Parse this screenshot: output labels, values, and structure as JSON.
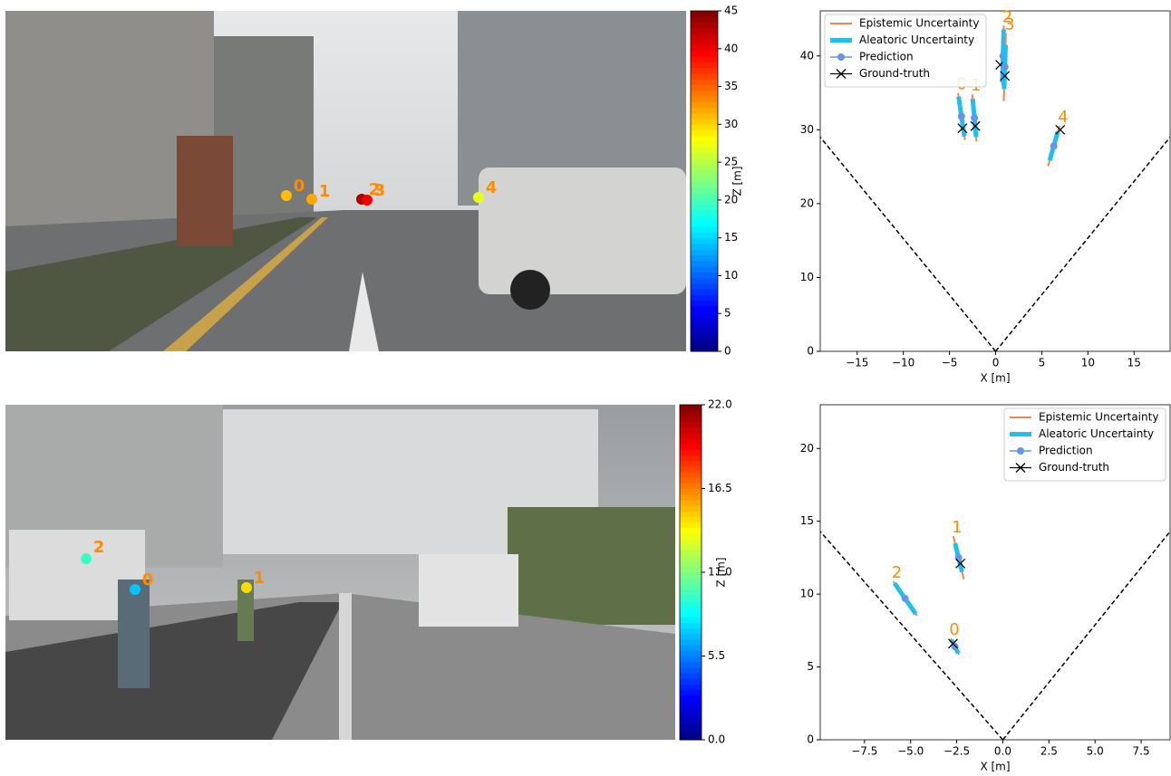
{
  "chart_data": [
    {
      "type": "image_points",
      "labels": [
        "0",
        "1",
        "2",
        "3",
        "4"
      ],
      "values": [
        31,
        32,
        43,
        40,
        27
      ],
      "label_color": "#ff8c00",
      "colorbar_label": "Z [m]",
      "zlim": [
        0,
        45
      ],
      "zticks": [
        0,
        5,
        10,
        15,
        20,
        25,
        30,
        35,
        40,
        45
      ]
    },
    {
      "type": "bev",
      "xlabel": "X [m]",
      "xlim": [
        -19,
        18.9
      ],
      "ylim": [
        0,
        46.1
      ],
      "xticks": [
        {
          "value": -15,
          "label": "−15"
        },
        {
          "value": -10,
          "label": "−10"
        },
        {
          "value": -5,
          "label": "−5"
        },
        0,
        5,
        10,
        15
      ],
      "yticks": [
        0,
        10,
        20,
        30,
        40
      ],
      "fov": [
        [
          -19,
          29
        ],
        [
          18.9,
          29
        ]
      ],
      "legend_loc": "upper left",
      "legend": [
        {
          "name": "Epistemic Uncertainty",
          "color": "#f4834f"
        },
        {
          "name": "Aleatoric Uncertainty",
          "color": "#1fbfef"
        },
        {
          "name": "Prediction",
          "color": "#6495ed"
        },
        {
          "name": "Ground-truth",
          "color": "#000000"
        }
      ],
      "label_color": "#ff8c00",
      "labels": [
        "0",
        "1",
        "2",
        "3",
        "4"
      ],
      "pred_x": [
        -3.7,
        -2.3,
        0.8,
        1.0,
        6.3
      ],
      "pred_z": [
        31.8,
        31.6,
        40.0,
        38.5,
        27.8
      ],
      "gt_x": [
        -3.6,
        -2.2,
        0.5,
        1.0,
        7.0
      ],
      "gt_z": [
        30.2,
        30.5,
        38.8,
        37.3,
        30.0
      ],
      "aleatoric": [
        2.7,
        2.6,
        3.6,
        3.0,
        2.0
      ],
      "epistemic": [
        3.2,
        3.2,
        4.1,
        4.6,
        2.8
      ]
    },
    {
      "type": "image_points",
      "labels": [
        "0",
        "1",
        "2"
      ],
      "values": [
        7,
        14.5,
        9.5
      ],
      "label_color": "#ff8c00",
      "colorbar_label": "Z [m]",
      "zlim": [
        0,
        22
      ],
      "zticks": [
        {
          "value": 0,
          "label": "0.0"
        },
        5.5,
        {
          "value": 11,
          "label": "11.0"
        },
        16.5,
        {
          "value": 22,
          "label": "22.0"
        }
      ]
    },
    {
      "type": "bev",
      "xlabel": "X [m]",
      "xlim": [
        -9.9,
        9.07
      ],
      "ylim": [
        0,
        23
      ],
      "xticks": [
        {
          "value": -7.5,
          "label": "−7.5"
        },
        {
          "value": -5,
          "label": "−5.0"
        },
        {
          "value": -2.5,
          "label": "−2.5"
        },
        {
          "value": 0,
          "label": "0.0"
        },
        2.5,
        {
          "value": 5,
          "label": "5.0"
        },
        7.5
      ],
      "yticks": [
        0,
        5,
        10,
        15,
        20
      ],
      "fov": [
        [
          -9.9,
          14.3
        ],
        [
          9.07,
          14.3
        ]
      ],
      "legend_loc": "upper right",
      "legend": [
        {
          "name": "Epistemic Uncertainty",
          "color": "#f4834f"
        },
        {
          "name": "Aleatoric Uncertainty",
          "color": "#1fbfef"
        },
        {
          "name": "Prediction",
          "color": "#6495ed"
        },
        {
          "name": "Ground-truth",
          "color": "#000000"
        }
      ],
      "label_color": "#ff8c00",
      "labels": [
        "0",
        "1",
        "2"
      ],
      "pred_x": [
        -2.6,
        -2.4,
        -5.3
      ],
      "pred_z": [
        6.4,
        12.5,
        9.7
      ],
      "gt_x": [
        -2.7,
        -2.3,
        null
      ],
      "gt_z": [
        6.6,
        12.1,
        null
      ],
      "aleatoric": [
        0.5,
        1.0,
        1.2
      ],
      "epistemic": [
        0.6,
        1.5,
        1.35
      ]
    }
  ]
}
